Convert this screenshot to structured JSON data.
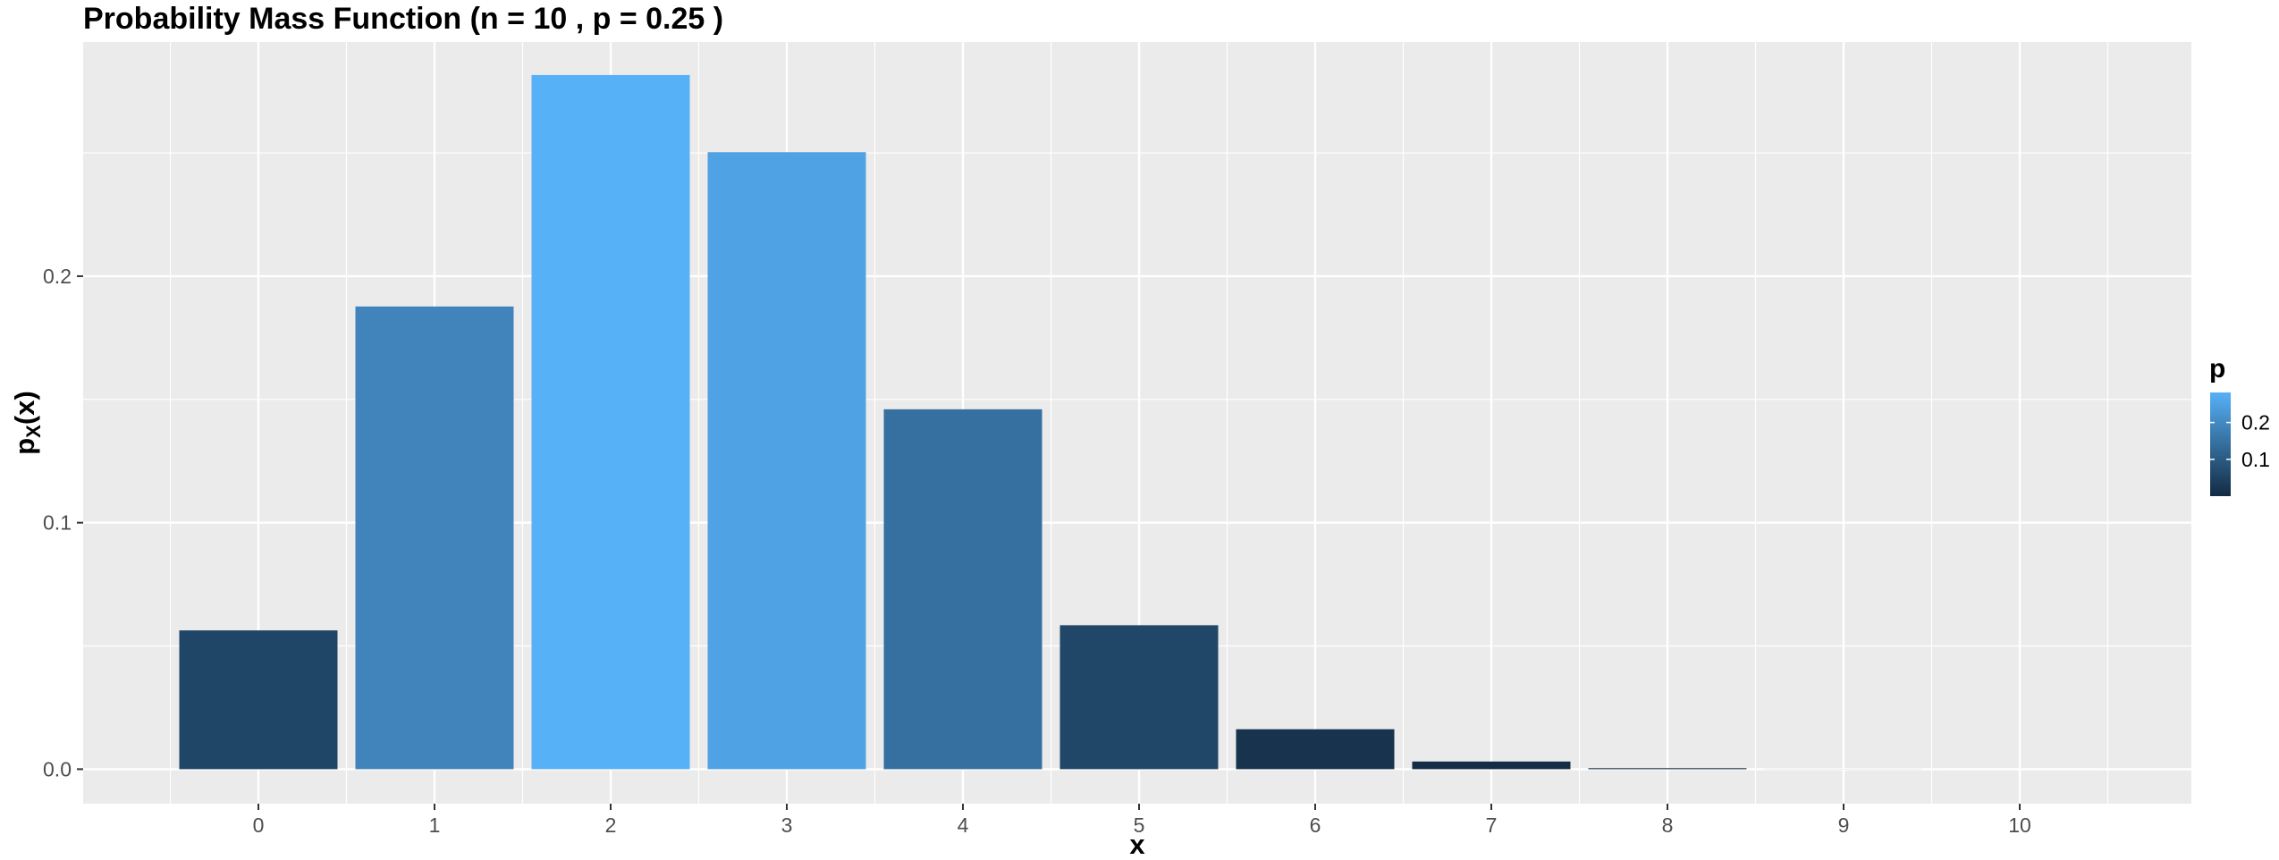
{
  "chart_data": {
    "type": "bar",
    "title": "Probability Mass Function (n = 10 , p = 0.25 )",
    "xlabel": "x",
    "ylabel": {
      "base": "p",
      "sub": "X",
      "tail": "(x)"
    },
    "categories": [
      "0",
      "1",
      "2",
      "3",
      "4",
      "5",
      "6",
      "7",
      "8",
      "9",
      "10"
    ],
    "values": [
      0.0563,
      0.1877,
      0.2816,
      0.2503,
      0.146,
      0.0584,
      0.0162,
      0.0031,
      0.0004,
      3e-05,
      1e-06
    ],
    "ylim": [
      -0.014,
      0.295
    ],
    "yticks": [
      0.0,
      0.1,
      0.2
    ],
    "ytick_labels": [
      "0.0",
      "0.1",
      "0.2"
    ],
    "grid": true,
    "legend": {
      "title": "p",
      "placement": "right",
      "ticks": [
        0.1,
        0.2
      ],
      "tick_labels": [
        "0.1",
        "0.2"
      ],
      "range": [
        0.0,
        0.2816
      ],
      "low_color": "#132B43",
      "high_color": "#56B1F7"
    },
    "colors": {
      "panel_background": "#EBEBEB",
      "grid": "#FFFFFF",
      "low": "#132B43",
      "high": "#56B1F7"
    }
  }
}
